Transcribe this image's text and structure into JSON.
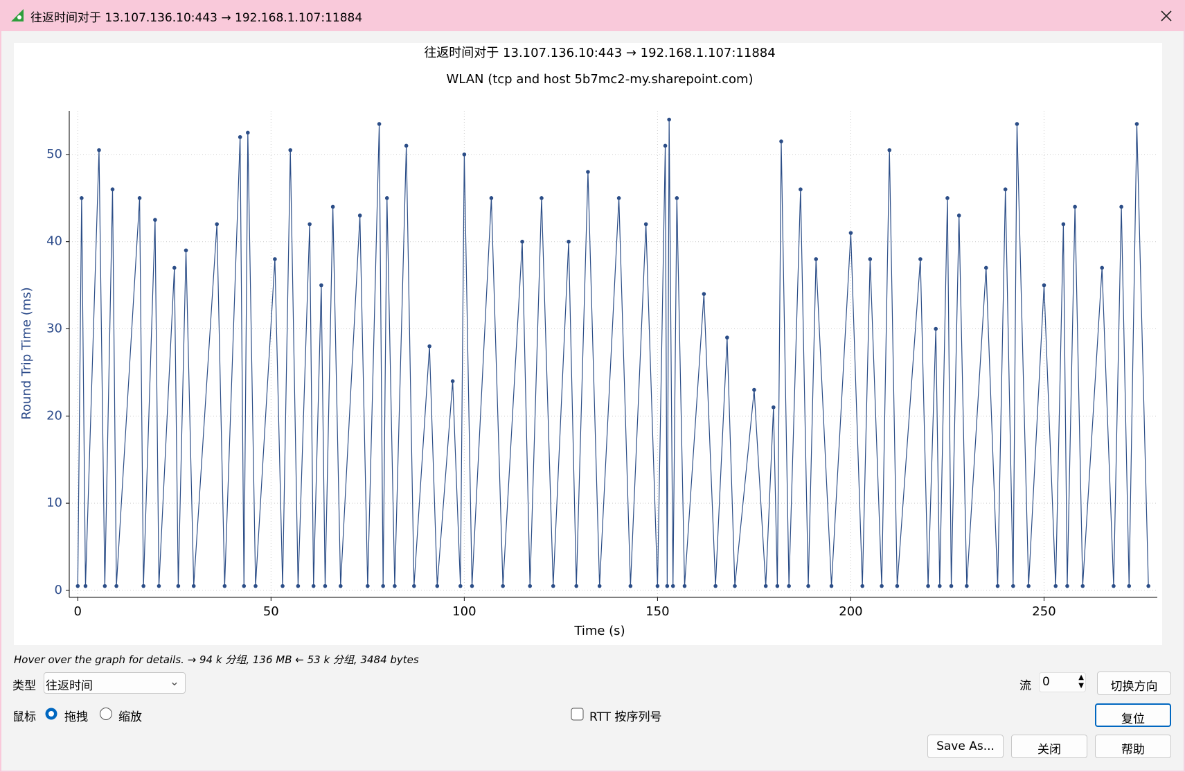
{
  "window": {
    "title": "往返时间对于 13.107.136.10:443 → 192.168.1.107:11884"
  },
  "chart_data": {
    "type": "line",
    "title": "往返时间对于 13.107.136.10:443 → 192.168.1.107:11884",
    "subtitle": "WLAN (tcp and host 5b7mc2-my.sharepoint.com)",
    "x_label": "Time (s)",
    "y_label": "Round Trip Time (ms)",
    "xlim": [
      -2.2,
      279.3
    ],
    "ylim": [
      -0.8,
      55
    ],
    "xticks": [
      0,
      50,
      100,
      150,
      200,
      250
    ],
    "yticks": [
      0,
      10,
      20,
      30,
      40,
      50
    ],
    "grid": true,
    "series": [
      {
        "color": "#2b4d87",
        "x": [
          0,
          1,
          2,
          5.5,
          7,
          9,
          10,
          16,
          17,
          20,
          21,
          25,
          26,
          28,
          30,
          36,
          38,
          42,
          43,
          44,
          46,
          51,
          53,
          55,
          57,
          60,
          61,
          63,
          64,
          66,
          68,
          73,
          75,
          78,
          79,
          80,
          82,
          85,
          87,
          91,
          93,
          97,
          99,
          100,
          102,
          107,
          110,
          115,
          117,
          120,
          123,
          127,
          129,
          132,
          135,
          140,
          143,
          147,
          150,
          152,
          152.5,
          153,
          154,
          155,
          157,
          162,
          165,
          168,
          170,
          175,
          178,
          180,
          181,
          182,
          184,
          187,
          189,
          191,
          195,
          200,
          203,
          205,
          208,
          210,
          212,
          218,
          220,
          222,
          223,
          225,
          226,
          228,
          230,
          235,
          238,
          240,
          242,
          243,
          246,
          250,
          253,
          255,
          256,
          258,
          260,
          265,
          268,
          270,
          272,
          274,
          277
        ],
        "values": [
          0.5,
          45,
          0.5,
          50.5,
          0.5,
          46,
          0.5,
          45,
          0.5,
          42.5,
          0.5,
          37,
          0.5,
          39,
          0.5,
          42,
          0.5,
          52,
          0.5,
          52.5,
          0.5,
          38,
          0.5,
          50.5,
          0.5,
          42,
          0.5,
          35,
          0.5,
          44,
          0.5,
          43,
          0.5,
          53.5,
          0.5,
          45,
          0.5,
          51,
          0.5,
          28,
          0.5,
          24,
          0.5,
          50,
          0.5,
          45,
          0.5,
          40,
          0.5,
          45,
          0.5,
          40,
          0.5,
          48,
          0.5,
          45,
          0.5,
          42,
          0.5,
          51,
          0.5,
          54,
          0.5,
          45,
          0.5,
          34,
          0.5,
          29,
          0.5,
          23,
          0.5,
          21,
          0.5,
          51.5,
          0.5,
          46,
          0.5,
          38,
          0.5,
          41,
          0.5,
          38,
          0.5,
          50.5,
          0.5,
          38,
          0.5,
          30,
          0.5,
          45,
          0.5,
          43,
          0.5,
          37,
          0.5,
          46,
          0.5,
          53.5,
          0.5,
          35,
          0.5,
          42,
          0.5,
          44,
          0.5,
          37,
          0.5,
          44,
          0.5,
          53.5,
          0.5
        ]
      }
    ]
  },
  "status": "Hover over the graph for details. → 94 k 分组, 136 MB ← 53 k 分组, 3484 bytes",
  "controls": {
    "type_label": "类型",
    "type_value": "往返时间",
    "stream_label": "流",
    "stream_value": 0,
    "switch_direction": "切换方向",
    "mouse_label": "鼠标",
    "drag": "拖拽",
    "zoom": "缩放",
    "rtt_by_seq": "RTT 按序列号",
    "reset": "复位",
    "save_as": "Save As...",
    "close": "关闭",
    "help": "帮助"
  }
}
